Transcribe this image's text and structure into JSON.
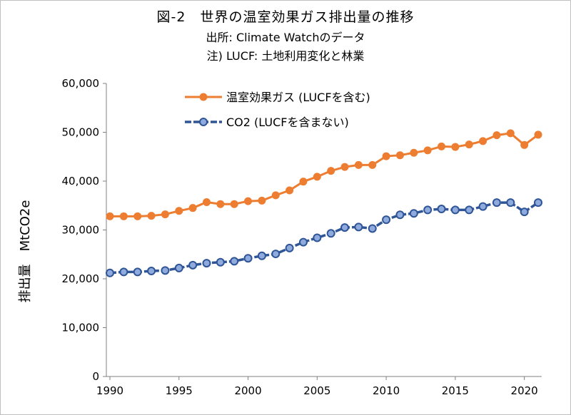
{
  "chart_data": {
    "type": "line",
    "title": "図-2　世界の温室効果ガス排出量の推移",
    "subtitle": [
      "出所: Climate Watchのデータ",
      "注) LUCF: 土地利用変化と林業"
    ],
    "xlabel": "",
    "ylabel": "排出量　MtCO2e",
    "xlim": [
      1990,
      2021
    ],
    "ylim": [
      0,
      60000
    ],
    "y_ticks": [
      0,
      10000,
      20000,
      30000,
      40000,
      50000,
      60000
    ],
    "y_tick_labels": [
      "0",
      "10,000",
      "20,000",
      "30,000",
      "40,000",
      "50,000",
      "60,000"
    ],
    "x_ticks": [
      1990,
      1995,
      2000,
      2005,
      2010,
      2015,
      2020
    ],
    "x_tick_labels": [
      "1990",
      "1995",
      "2000",
      "2005",
      "2010",
      "2015",
      "2020"
    ],
    "grid": false,
    "legend_position": "top-center",
    "x": [
      1990,
      1991,
      1992,
      1993,
      1994,
      1995,
      1996,
      1997,
      1998,
      1999,
      2000,
      2001,
      2002,
      2003,
      2004,
      2005,
      2006,
      2007,
      2008,
      2009,
      2010,
      2011,
      2012,
      2013,
      2014,
      2015,
      2016,
      2017,
      2018,
      2019,
      2020,
      2021
    ],
    "series": [
      {
        "name": "温室効果ガス (LUCFを含む)",
        "color": "#ED7D31",
        "marker_fill": "#ED7D31",
        "values": [
          32800,
          32800,
          32800,
          32900,
          33200,
          33900,
          34500,
          35700,
          35300,
          35300,
          35900,
          36000,
          37100,
          38100,
          39900,
          40900,
          42100,
          42900,
          43300,
          43300,
          45100,
          45300,
          45800,
          46300,
          47100,
          47000,
          47500,
          48200,
          49400,
          49800,
          47400,
          49500
        ]
      },
      {
        "name": "CO2 (LUCFを含まない)",
        "color": "#2F5597",
        "marker_fill": "#8FAADC",
        "values": [
          21200,
          21400,
          21400,
          21600,
          21700,
          22200,
          22800,
          23200,
          23400,
          23600,
          24200,
          24700,
          25100,
          26300,
          27500,
          28400,
          29300,
          30500,
          30600,
          30300,
          32100,
          33100,
          33400,
          34100,
          34300,
          34100,
          34100,
          34800,
          35600,
          35600,
          33700,
          35600
        ]
      }
    ]
  }
}
